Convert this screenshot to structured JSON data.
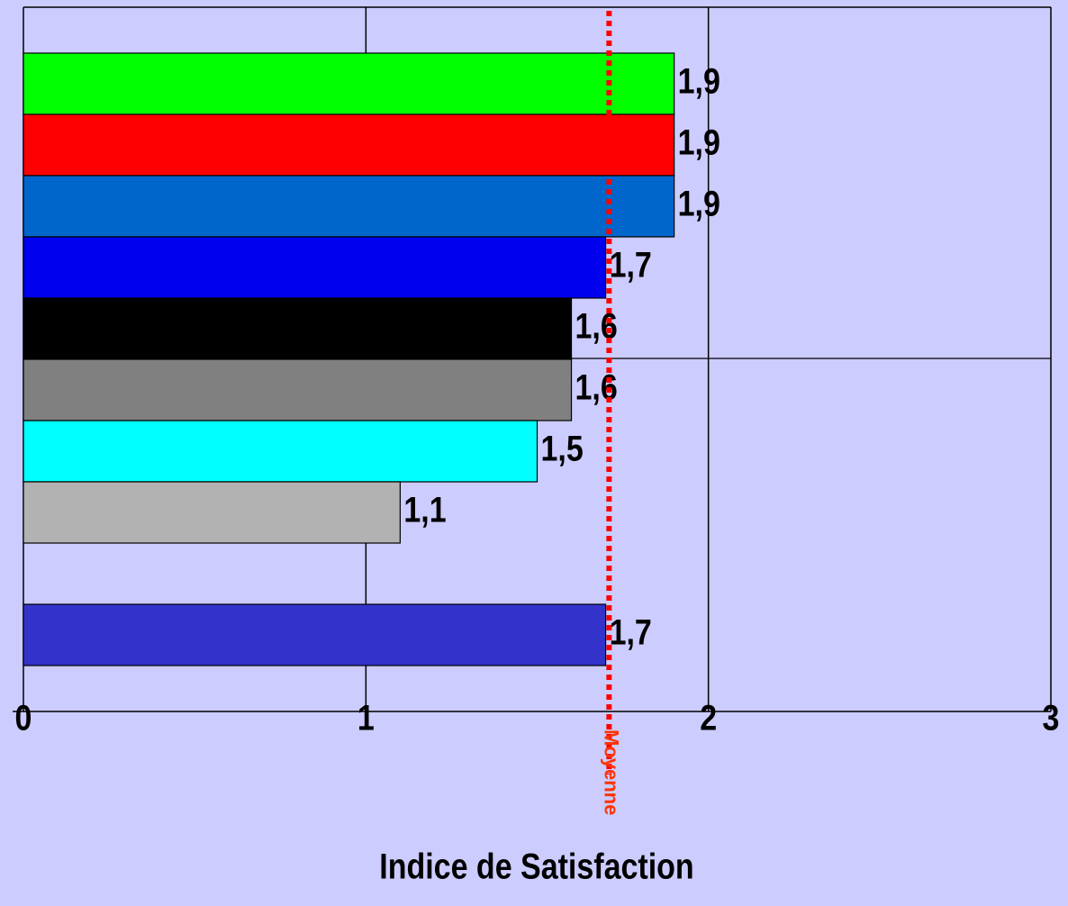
{
  "chart_data": {
    "type": "bar",
    "orientation": "horizontal",
    "x_label": "Indice de Satisfaction",
    "categories": [
      null,
      null,
      null,
      null,
      null,
      null,
      null,
      null,
      null,
      null
    ],
    "values": [
      1.9,
      1.9,
      1.9,
      1.7,
      1.6,
      1.6,
      1.5,
      1.1,
      null,
      1.7
    ],
    "value_labels": [
      "1,9",
      "1,9",
      "1,9",
      "1,7",
      "1,6",
      "1,6",
      "1,5",
      "1,1",
      null,
      "1,7"
    ],
    "colors": [
      "#00ff00",
      "#ff0000",
      "#0066cc",
      "#0000ee",
      "#000000",
      "#808080",
      "#00ffff",
      "#b2b2b2",
      null,
      "#3333cc"
    ],
    "xlim": [
      0,
      3
    ],
    "xticks": [
      0,
      1,
      2,
      3
    ],
    "grid": true,
    "reference_line": {
      "value": 1.71,
      "label": "Moyenne",
      "color": "#ff0000",
      "label_color": "#ff3300"
    }
  }
}
